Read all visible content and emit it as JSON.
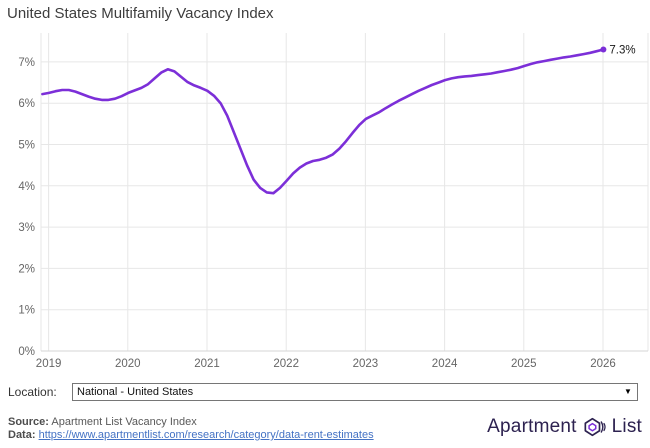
{
  "title": "United States Multifamily Vacancy Index",
  "chart_data": {
    "type": "line",
    "title": "United States Multifamily Vacancy Index",
    "xlabel": "",
    "ylabel": "",
    "x_ticks": [
      "2019",
      "2020",
      "2021",
      "2022",
      "2023",
      "2024",
      "2025",
      "2026"
    ],
    "y_ticks": [
      "0%",
      "1%",
      "2%",
      "3%",
      "4%",
      "5%",
      "6%",
      "7%"
    ],
    "ylim": [
      0,
      7.7
    ],
    "grid": true,
    "legend": false,
    "series": [
      {
        "name": "National - United States",
        "start": "2018-12",
        "interval": "monthly",
        "unit": "percent",
        "values": [
          6.22,
          6.25,
          6.29,
          6.32,
          6.32,
          6.28,
          6.22,
          6.16,
          6.11,
          6.08,
          6.08,
          6.11,
          6.17,
          6.25,
          6.31,
          6.37,
          6.46,
          6.6,
          6.74,
          6.82,
          6.77,
          6.64,
          6.51,
          6.43,
          6.37,
          6.3,
          6.18,
          6.0,
          5.7,
          5.3,
          4.9,
          4.5,
          4.15,
          3.95,
          3.84,
          3.82,
          3.95,
          4.12,
          4.3,
          4.44,
          4.54,
          4.6,
          4.63,
          4.68,
          4.76,
          4.9,
          5.08,
          5.28,
          5.47,
          5.62,
          5.7,
          5.78,
          5.88,
          5.97,
          6.06,
          6.14,
          6.22,
          6.3,
          6.37,
          6.44,
          6.5,
          6.56,
          6.6,
          6.63,
          6.65,
          6.66,
          6.68,
          6.7,
          6.72,
          6.75,
          6.78,
          6.81,
          6.85,
          6.9,
          6.95,
          6.99,
          7.02,
          7.05,
          7.08,
          7.11,
          7.13,
          7.16,
          7.19,
          7.22,
          7.26,
          7.3
        ]
      }
    ],
    "end_label": "7.3%",
    "line_color": "#7c2fd8",
    "grid_color": "#e7e7e7",
    "axis_line_color": "#d6d6d6",
    "axis_label_color": "#666666",
    "end_label_color": "#1a1a1a"
  },
  "controls": {
    "location_label": "Location:",
    "location_value": "National - United States",
    "dropdown_arrow": "▼"
  },
  "footer": {
    "source_label": "Source:",
    "source_text": "Apartment List Vacancy Index",
    "data_label": "Data:",
    "data_link": "https://www.apartmentlist.com/research/category/data-rent-estimates",
    "logo": {
      "word1": "Apartment",
      "word2": "List",
      "icon": "apartment-list-logo-icon",
      "text_color": "#2d2250",
      "accent_color": "#7c2fd8",
      "link_color": "#4472c4"
    }
  }
}
